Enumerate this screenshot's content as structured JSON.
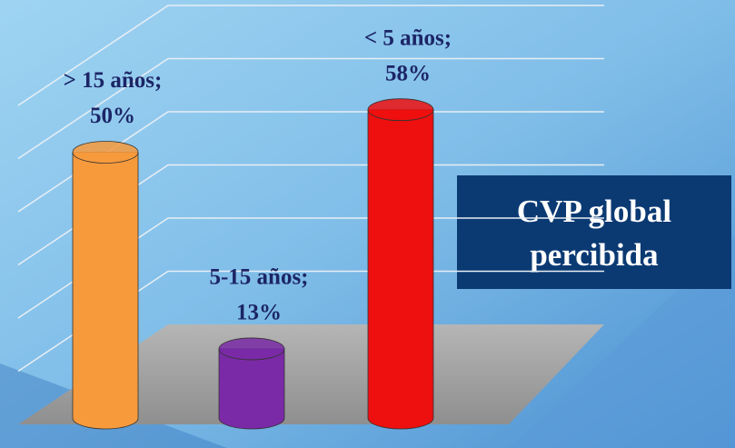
{
  "chart_data": {
    "type": "bar",
    "categories": [
      "> 15 años;",
      "5-15 años;",
      "< 5 años;"
    ],
    "values": [
      50,
      13,
      58
    ],
    "value_labels": [
      "50%",
      "13%",
      "58%"
    ],
    "colors": [
      "#f79a3c",
      "#7a2aa6",
      "#ee0f0f"
    ],
    "ylim": [
      0,
      70
    ],
    "yticks": [
      0,
      10,
      20,
      30,
      40,
      50,
      60
    ],
    "grid": true,
    "annotation": [
      "CVP global",
      "percibida"
    ]
  }
}
